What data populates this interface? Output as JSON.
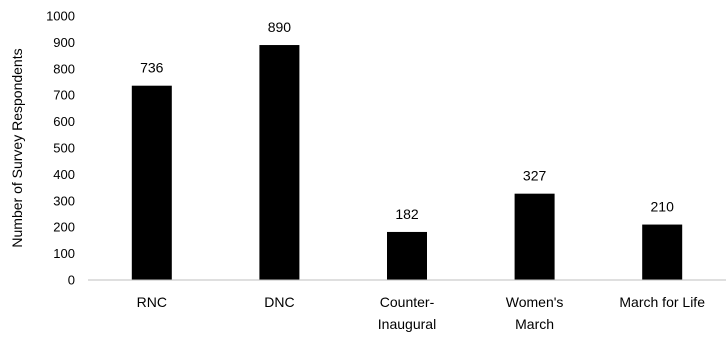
{
  "chart_data": {
    "type": "bar",
    "categories": [
      [
        "RNC"
      ],
      [
        "DNC"
      ],
      [
        "Counter-",
        "Inaugural"
      ],
      [
        "Women's",
        "March"
      ],
      [
        "March for Life"
      ]
    ],
    "values": [
      736,
      890,
      182,
      327,
      210
    ],
    "data_labels": [
      "736",
      "890",
      "182",
      "327",
      "210"
    ],
    "title": "",
    "xlabel": "",
    "ylabel": "Number of Survey Respondents",
    "ylim": [
      0,
      1000
    ],
    "yticks": [
      0,
      100,
      200,
      300,
      400,
      500,
      600,
      700,
      800,
      900,
      1000
    ],
    "grid": false,
    "legend": "none",
    "bar_color": "#000000",
    "axis_color": "#bfbfbf"
  }
}
